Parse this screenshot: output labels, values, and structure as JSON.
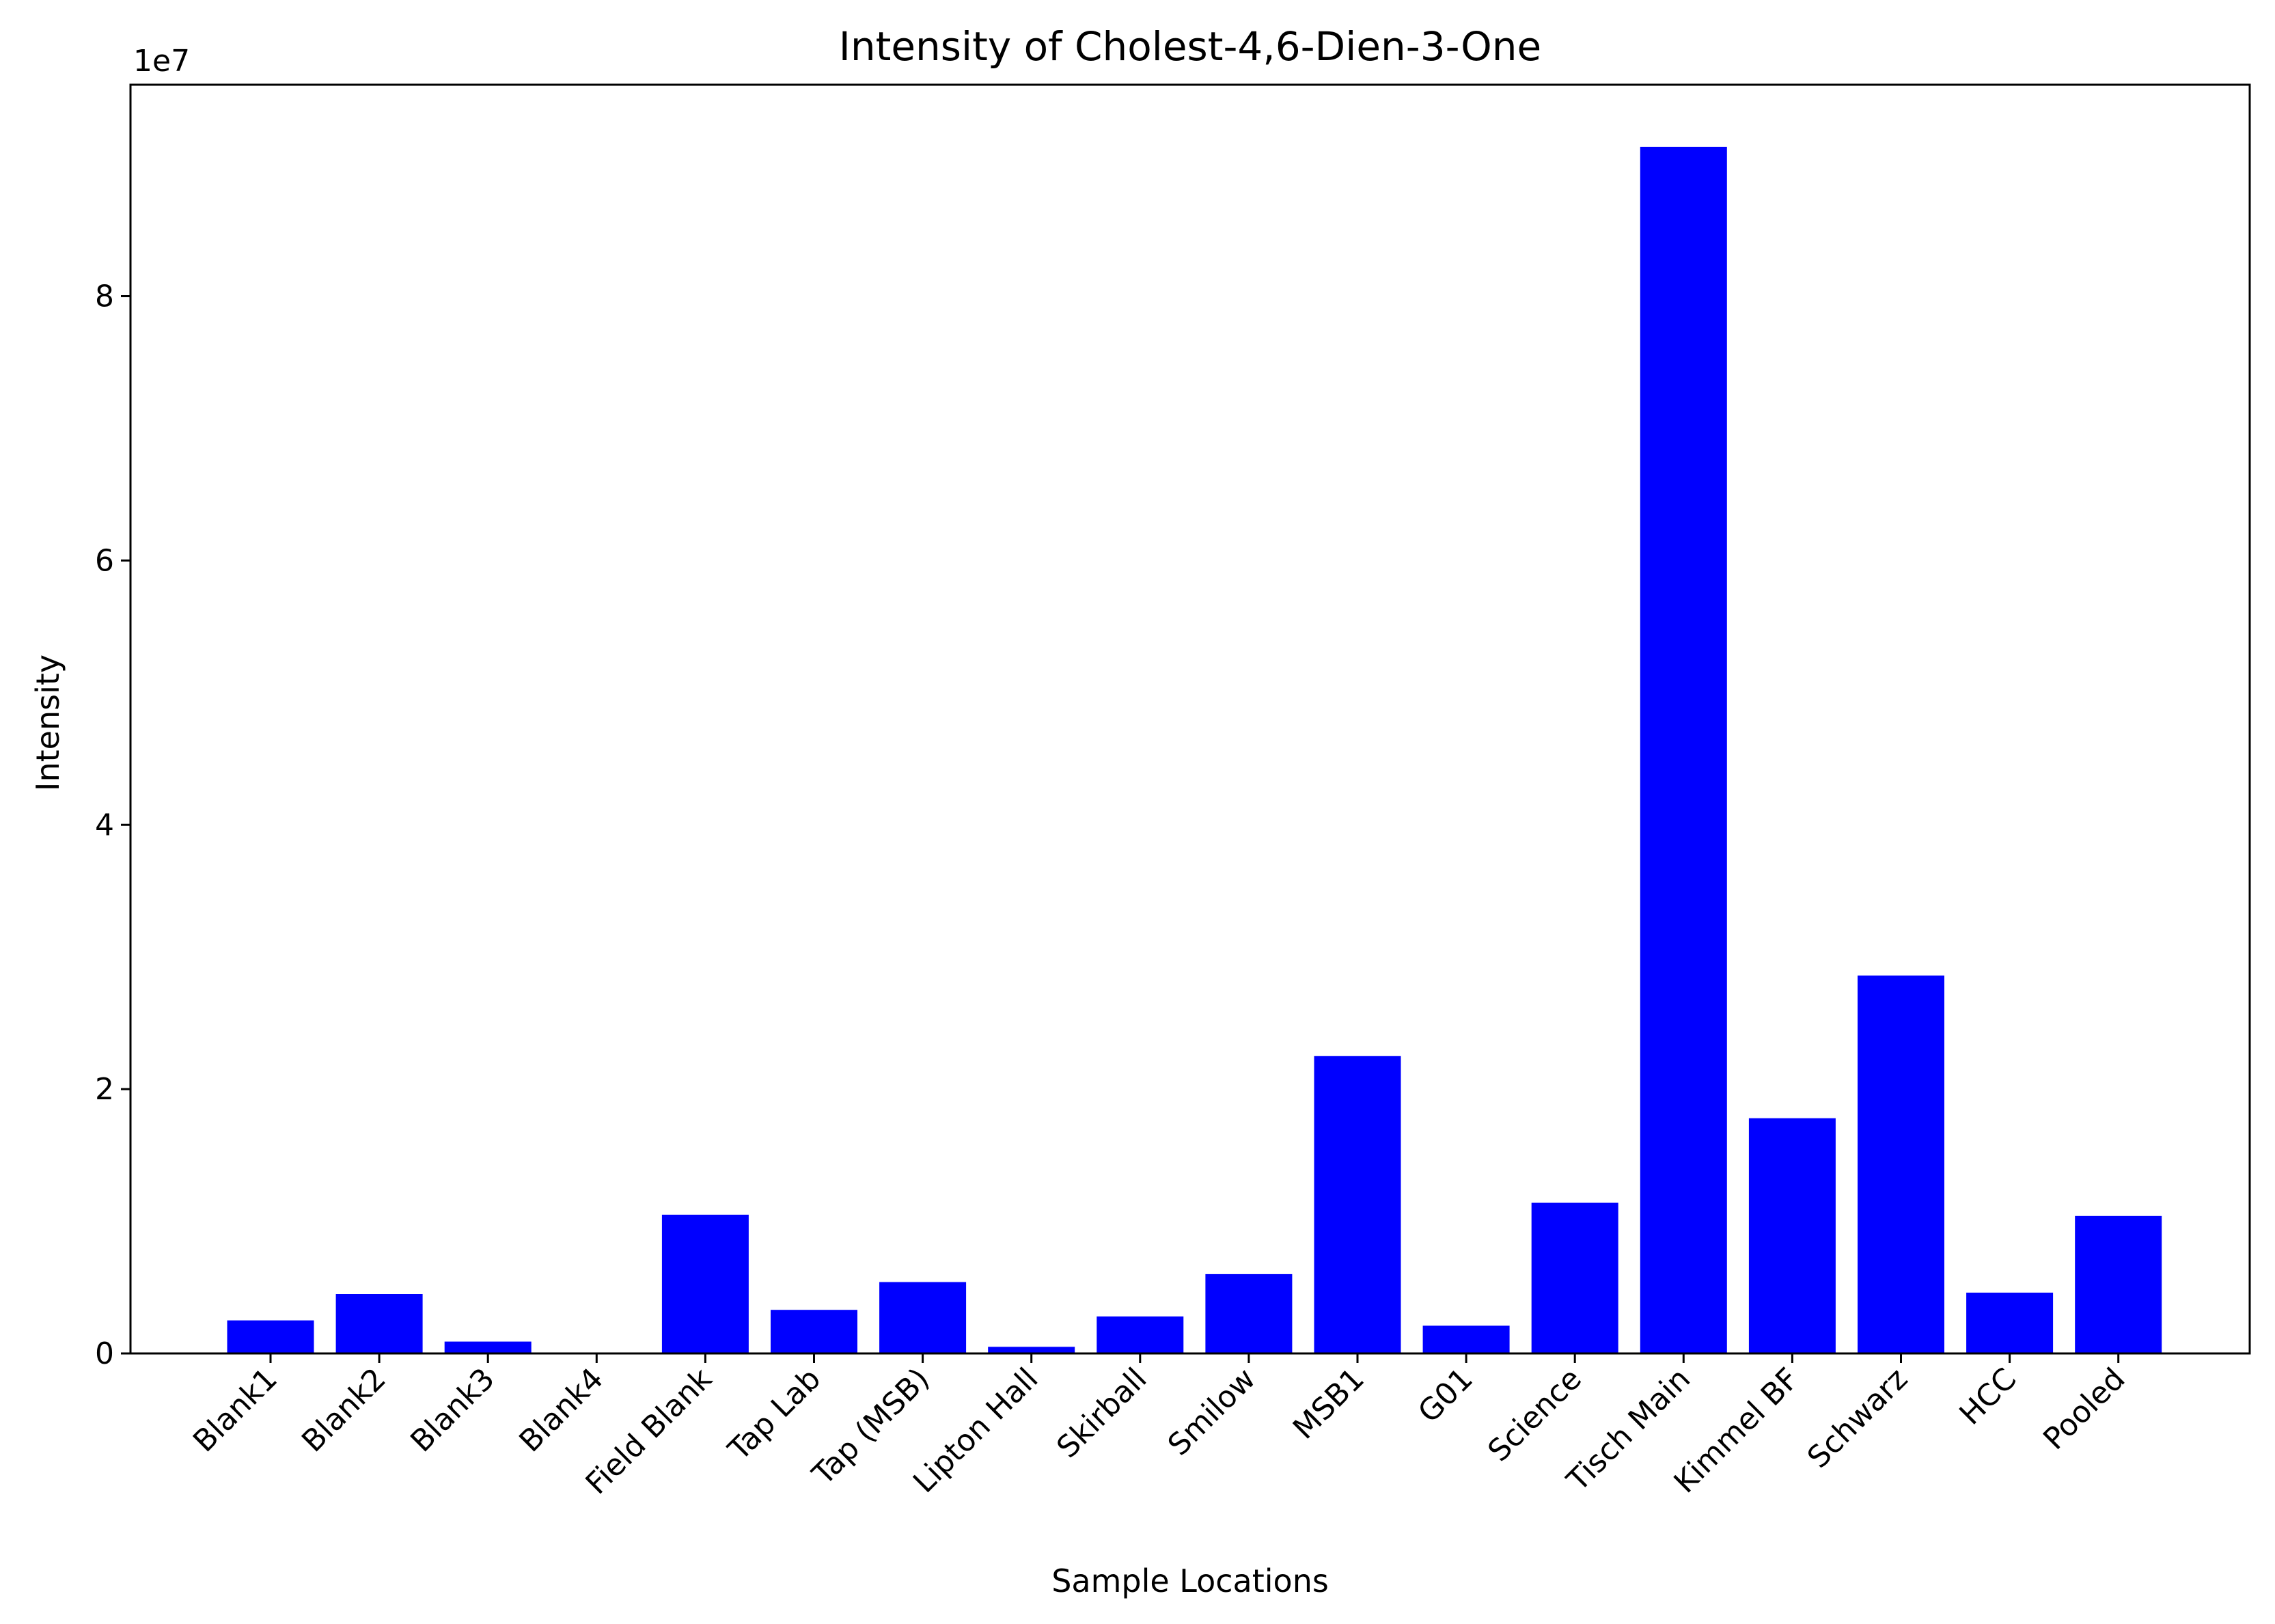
{
  "chart_data": {
    "type": "bar",
    "title": "Intensity of Cholest-4,6-Dien-3-One",
    "xlabel": "Sample Locations",
    "ylabel": "Intensity",
    "y_offset_label": "1e7",
    "y_scale": 10000000,
    "ylim": [
      0,
      96000000
    ],
    "yticks": [
      0,
      20000000,
      40000000,
      60000000,
      80000000
    ],
    "ytick_labels": [
      "0",
      "2",
      "4",
      "6",
      "8"
    ],
    "grid": false,
    "bar_color": "#0000ff",
    "categories": [
      "Blank1",
      "Blank2",
      "Blank3",
      "Blank4",
      "Field Blank",
      "Tap Lab",
      "Tap (MSB)",
      "Lipton Hall",
      "Skirball",
      "Smilow",
      "MSB1",
      "G01",
      "Science",
      "Tisch Main",
      "Kimmel BF",
      "Schwarz",
      "HCC",
      "Pooled"
    ],
    "values": [
      2500000,
      4500000,
      900000,
      0,
      10500000,
      3300000,
      5400000,
      500000,
      2800000,
      6000000,
      22500000,
      2100000,
      11400000,
      91300000,
      17800000,
      28600000,
      4600000,
      10400000
    ]
  }
}
